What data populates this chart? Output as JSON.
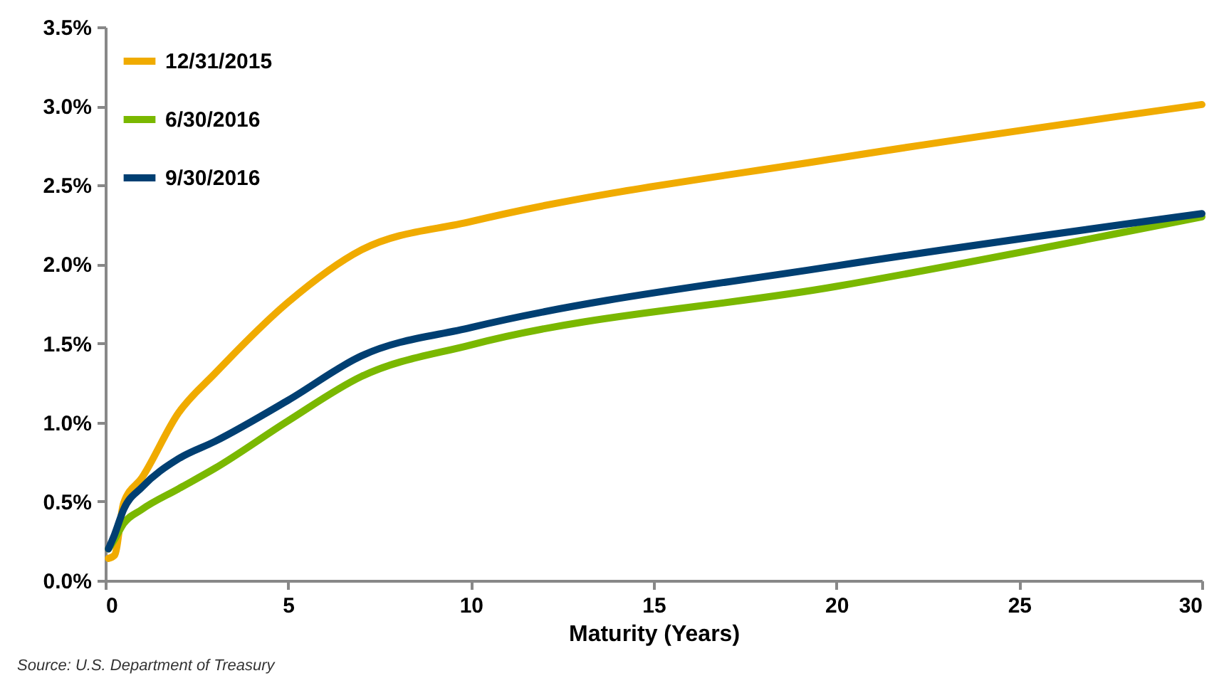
{
  "chart_data": {
    "type": "line",
    "xlabel": "Maturity (Years)",
    "annotations": [
      "Source: U.S. Department of Treasury"
    ],
    "x": [
      0.0833,
      0.25,
      0.5,
      1,
      2,
      3,
      5,
      7,
      10,
      20,
      30
    ],
    "series": [
      {
        "name": "12/31/2015",
        "color": "#f0ab00",
        "values": [
          0.14,
          0.16,
          0.49,
          0.65,
          1.06,
          1.31,
          1.76,
          2.09,
          2.27,
          2.67,
          3.01
        ]
      },
      {
        "name": "6/30/2016",
        "color": "#7ab800",
        "values": [
          0.2,
          0.26,
          0.36,
          0.45,
          0.58,
          0.71,
          1.01,
          1.29,
          1.49,
          1.86,
          2.3
        ]
      },
      {
        "name": "9/30/2016",
        "color": "#003f72",
        "values": [
          0.2,
          0.29,
          0.45,
          0.59,
          0.77,
          0.88,
          1.14,
          1.42,
          1.6,
          1.99,
          2.32
        ]
      }
    ],
    "xlim": [
      0,
      30
    ],
    "xticks": [
      0,
      5,
      10,
      15,
      20,
      25,
      30
    ],
    "ylim": [
      0,
      3.5
    ],
    "yticks": [
      {
        "value": 0,
        "label": "0.0%"
      },
      {
        "value": 0.5,
        "label": "0.5%"
      },
      {
        "value": 1,
        "label": "1.0%"
      },
      {
        "value": 1.5,
        "label": "1.5%"
      },
      {
        "value": 2,
        "label": "2.0%"
      },
      {
        "value": 2.5,
        "label": "2.5%"
      },
      {
        "value": 3,
        "label": "3.0%"
      },
      {
        "value": 3.5,
        "label": "3.5%"
      }
    ],
    "grid": false,
    "legend": "top left",
    "marker": "none",
    "line_style": "solid"
  }
}
